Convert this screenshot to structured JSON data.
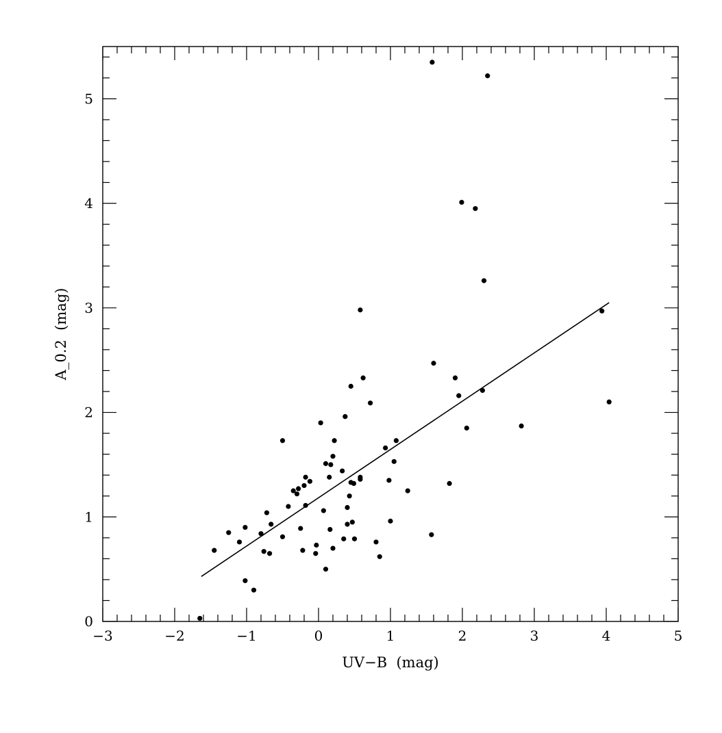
{
  "chart_data": {
    "type": "scatter",
    "title": "",
    "xlabel": "UV−B  (mag)",
    "ylabel": "A_0.2  (mag)",
    "xlim": [
      -3,
      5
    ],
    "ylim": [
      0,
      5.5
    ],
    "x_ticks": [
      -3,
      -2,
      -1,
      0,
      1,
      2,
      3,
      4,
      5
    ],
    "x_tick_labels": [
      "−3",
      "−2",
      "−1",
      "0",
      "1",
      "2",
      "3",
      "4",
      "5"
    ],
    "y_ticks": [
      0,
      1,
      2,
      3,
      4,
      5
    ],
    "y_tick_labels": [
      "0",
      "1",
      "2",
      "3",
      "4",
      "5"
    ],
    "grid": false,
    "series": [
      {
        "marker": "dot",
        "points": [
          [
            -1.65,
            0.03
          ],
          [
            -1.45,
            0.68
          ],
          [
            -1.25,
            0.85
          ],
          [
            -1.1,
            0.76
          ],
          [
            -1.02,
            0.9
          ],
          [
            -1.02,
            0.39
          ],
          [
            -0.9,
            0.3
          ],
          [
            -0.8,
            0.84
          ],
          [
            -0.76,
            0.67
          ],
          [
            -0.72,
            1.04
          ],
          [
            -0.68,
            0.65
          ],
          [
            -0.66,
            0.93
          ],
          [
            -0.5,
            1.73
          ],
          [
            -0.5,
            0.81
          ],
          [
            -0.42,
            1.1
          ],
          [
            -0.35,
            1.25
          ],
          [
            -0.3,
            1.22
          ],
          [
            -0.28,
            1.27
          ],
          [
            -0.25,
            0.89
          ],
          [
            -0.2,
            1.3
          ],
          [
            -0.18,
            1.38
          ],
          [
            -0.22,
            0.68
          ],
          [
            -0.18,
            1.11
          ],
          [
            -0.12,
            1.34
          ],
          [
            -0.04,
            0.65
          ],
          [
            -0.03,
            0.73
          ],
          [
            0.03,
            1.9
          ],
          [
            0.07,
            1.06
          ],
          [
            0.1,
            0.5
          ],
          [
            0.1,
            1.51
          ],
          [
            0.15,
            1.38
          ],
          [
            0.16,
            0.88
          ],
          [
            0.17,
            1.5
          ],
          [
            0.2,
            1.58
          ],
          [
            0.2,
            0.7
          ],
          [
            0.22,
            1.73
          ],
          [
            0.33,
            1.44
          ],
          [
            0.35,
            0.79
          ],
          [
            0.37,
            1.96
          ],
          [
            0.4,
            0.93
          ],
          [
            0.4,
            1.09
          ],
          [
            0.43,
            1.2
          ],
          [
            0.45,
            2.25
          ],
          [
            0.45,
            1.33
          ],
          [
            0.47,
            0.95
          ],
          [
            0.49,
            1.32
          ],
          [
            0.5,
            0.79
          ],
          [
            0.58,
            1.36
          ],
          [
            0.58,
            1.38
          ],
          [
            0.58,
            2.98
          ],
          [
            0.62,
            2.33
          ],
          [
            0.72,
            2.09
          ],
          [
            0.8,
            0.76
          ],
          [
            0.85,
            0.62
          ],
          [
            0.93,
            1.66
          ],
          [
            0.98,
            1.35
          ],
          [
            1.0,
            0.96
          ],
          [
            1.05,
            1.53
          ],
          [
            1.08,
            1.73
          ],
          [
            1.24,
            1.25
          ],
          [
            1.57,
            0.83
          ],
          [
            1.58,
            5.35
          ],
          [
            1.6,
            2.47
          ],
          [
            1.82,
            1.32
          ],
          [
            1.9,
            2.33
          ],
          [
            1.95,
            2.16
          ],
          [
            1.99,
            4.01
          ],
          [
            2.06,
            1.85
          ],
          [
            2.18,
            3.95
          ],
          [
            2.28,
            2.21
          ],
          [
            2.3,
            3.26
          ],
          [
            2.35,
            5.22
          ],
          [
            2.82,
            1.87
          ],
          [
            3.94,
            2.97
          ],
          [
            4.04,
            2.1
          ]
        ]
      }
    ],
    "fit_line": {
      "x": [
        -1.63,
        4.04
      ],
      "y": [
        0.43,
        3.05
      ]
    }
  }
}
